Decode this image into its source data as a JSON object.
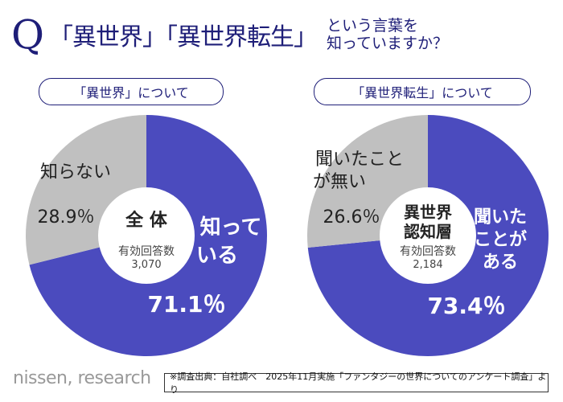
{
  "title": {
    "q": "Q",
    "main": "「異世界」「異世界転生」",
    "sub_line1": "という言葉を",
    "sub_line2": "知っていますか？"
  },
  "colors": {
    "known": "#4b4bbe",
    "unknown": "#c0c0c0",
    "title": "#1e1e78"
  },
  "chart_data": [
    {
      "type": "pie",
      "donut": true,
      "header": "「異世界」について",
      "center": {
        "line1": "全 体",
        "line2": "",
        "respondents_label": "有効回答数",
        "respondents": "3,070"
      },
      "slices": [
        {
          "label_line1": "知って",
          "label_line2": "いる",
          "value": 71.1,
          "value_label": "71.1％"
        },
        {
          "label_line1": "知らない",
          "label_line2": "",
          "value": 28.9,
          "value_label": "28.9％"
        }
      ]
    },
    {
      "type": "pie",
      "donut": true,
      "header": "「異世界転生」について",
      "center": {
        "line1": "異世界",
        "line2": "認知層",
        "respondents_label": "有効回答数",
        "respondents": "2,184"
      },
      "slices": [
        {
          "label_line1": "聞いた",
          "label_line2": "ことが",
          "label_line3": "ある",
          "value": 73.4,
          "value_label": "73.4％"
        },
        {
          "label_line1": "聞いたこと",
          "label_line2": "が無い",
          "value": 26.6,
          "value_label": "26.6％"
        }
      ]
    }
  ],
  "footer": {
    "logo": "nissen, research",
    "source": "※調査出典：自社調べ　2025年11月実施「ファンタジーの世界についてのアンケート調査」より"
  }
}
